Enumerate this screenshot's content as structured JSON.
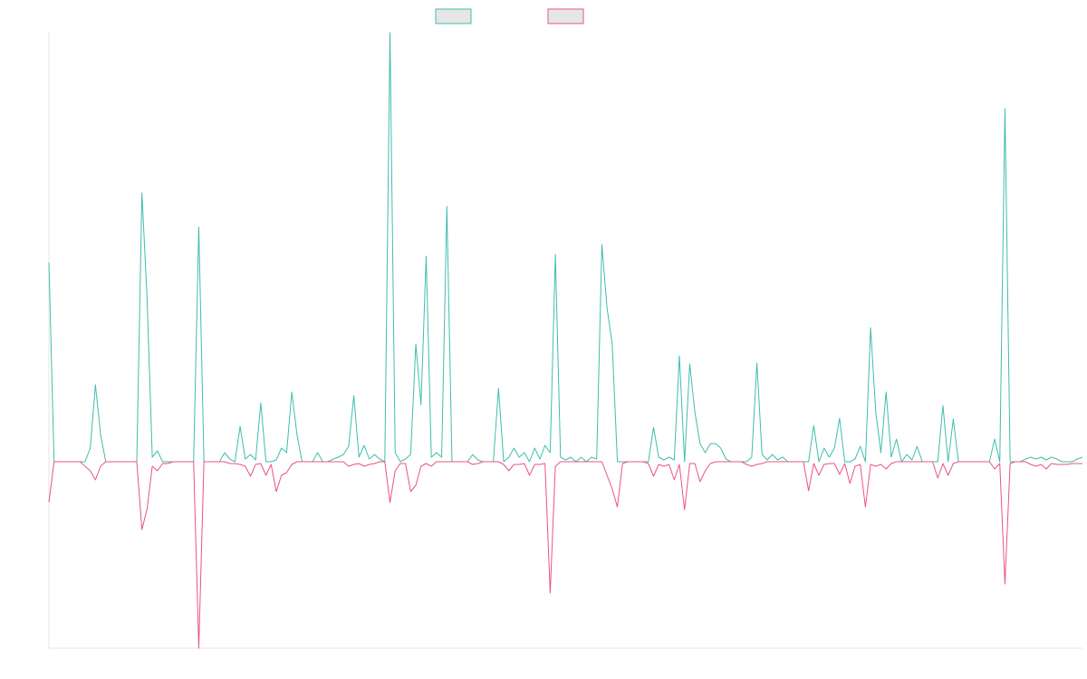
{
  "chart_data": {
    "type": "line",
    "ylim": [
      -206,
      474
    ],
    "series": [
      {
        "color": "#3fbdae",
        "values": [
          220,
          0,
          0,
          0,
          0,
          0,
          0,
          0,
          15,
          85,
          30,
          0,
          0,
          0,
          0,
          0,
          0,
          0,
          297,
          180,
          5,
          12,
          0,
          0,
          0,
          0,
          0,
          0,
          0,
          259,
          0,
          0,
          0,
          0,
          10,
          3,
          0,
          39,
          3,
          8,
          2,
          65,
          0,
          0,
          2,
          15,
          10,
          77,
          30,
          0,
          0,
          0,
          10,
          0,
          0,
          3,
          5,
          8,
          17,
          73,
          5,
          18,
          3,
          8,
          3,
          0,
          474,
          10,
          0,
          3,
          8,
          130,
          63,
          227,
          5,
          10,
          5,
          282,
          0,
          0,
          0,
          0,
          8,
          2,
          0,
          0,
          0,
          81,
          0,
          5,
          15,
          5,
          10,
          0,
          15,
          3,
          18,
          10,
          229,
          5,
          2,
          5,
          0,
          5,
          0,
          5,
          3,
          240,
          170,
          130,
          0,
          0,
          0,
          0,
          0,
          0,
          0,
          38,
          5,
          2,
          5,
          2,
          117,
          0,
          108,
          55,
          20,
          10,
          20,
          20,
          15,
          3,
          0,
          0,
          0,
          0,
          5,
          109,
          8,
          2,
          8,
          2,
          5,
          0,
          0,
          0,
          0,
          0,
          40,
          0,
          15,
          5,
          15,
          48,
          0,
          0,
          3,
          17,
          0,
          148,
          55,
          10,
          77,
          5,
          25,
          0,
          8,
          2,
          17,
          0,
          0,
          0,
          0,
          62,
          0,
          47,
          0,
          0,
          0,
          0,
          0,
          0,
          0,
          25,
          0,
          390,
          0,
          0,
          0,
          3,
          5,
          3,
          5,
          2,
          5,
          3,
          0,
          0,
          0,
          3,
          5
        ]
      },
      {
        "color": "#e8557e",
        "values": [
          -45,
          0,
          0,
          0,
          0,
          0,
          0,
          -5,
          -10,
          -20,
          -5,
          0,
          0,
          0,
          0,
          0,
          0,
          0,
          -75,
          -52,
          -5,
          -10,
          -2,
          -2,
          0,
          0,
          0,
          0,
          0,
          -206,
          0,
          0,
          0,
          0,
          0,
          -2,
          -2,
          -3,
          -5,
          -16,
          -3,
          -2,
          -15,
          -3,
          -33,
          -15,
          -12,
          -3,
          0,
          0,
          0,
          0,
          0,
          0,
          0,
          0,
          0,
          0,
          -5,
          -3,
          -2,
          -5,
          -3,
          -2,
          0,
          0,
          -45,
          -10,
          -2,
          -2,
          -33,
          -26,
          -5,
          -2,
          -5,
          0,
          0,
          0,
          0,
          0,
          0,
          0,
          -3,
          -2,
          0,
          0,
          0,
          0,
          -3,
          -10,
          -3,
          -3,
          -2,
          -15,
          -3,
          -3,
          -2,
          -145,
          -5,
          0,
          0,
          0,
          0,
          0,
          0,
          0,
          0,
          0,
          -15,
          -30,
          -50,
          -2,
          0,
          0,
          0,
          0,
          -2,
          -16,
          -3,
          -5,
          -3,
          -20,
          -3,
          -53,
          -2,
          -2,
          -22,
          -10,
          -2,
          0,
          0,
          0,
          0,
          0,
          0,
          -3,
          -5,
          -3,
          -2,
          0,
          0,
          0,
          0,
          0,
          0,
          0,
          0,
          -32,
          -2,
          -15,
          -3,
          -2,
          -2,
          -14,
          -2,
          -24,
          -5,
          -3,
          -50,
          -3,
          -5,
          -3,
          -8,
          -2,
          0,
          0,
          0,
          0,
          0,
          0,
          0,
          0,
          -18,
          -2,
          -15,
          -2,
          0,
          0,
          0,
          0,
          0,
          0,
          0,
          -8,
          -2,
          -135,
          -2,
          0,
          0,
          0,
          -3,
          -5,
          -3,
          -8,
          -2,
          -3,
          -3,
          -3,
          -2,
          -2,
          -2
        ]
      }
    ]
  }
}
